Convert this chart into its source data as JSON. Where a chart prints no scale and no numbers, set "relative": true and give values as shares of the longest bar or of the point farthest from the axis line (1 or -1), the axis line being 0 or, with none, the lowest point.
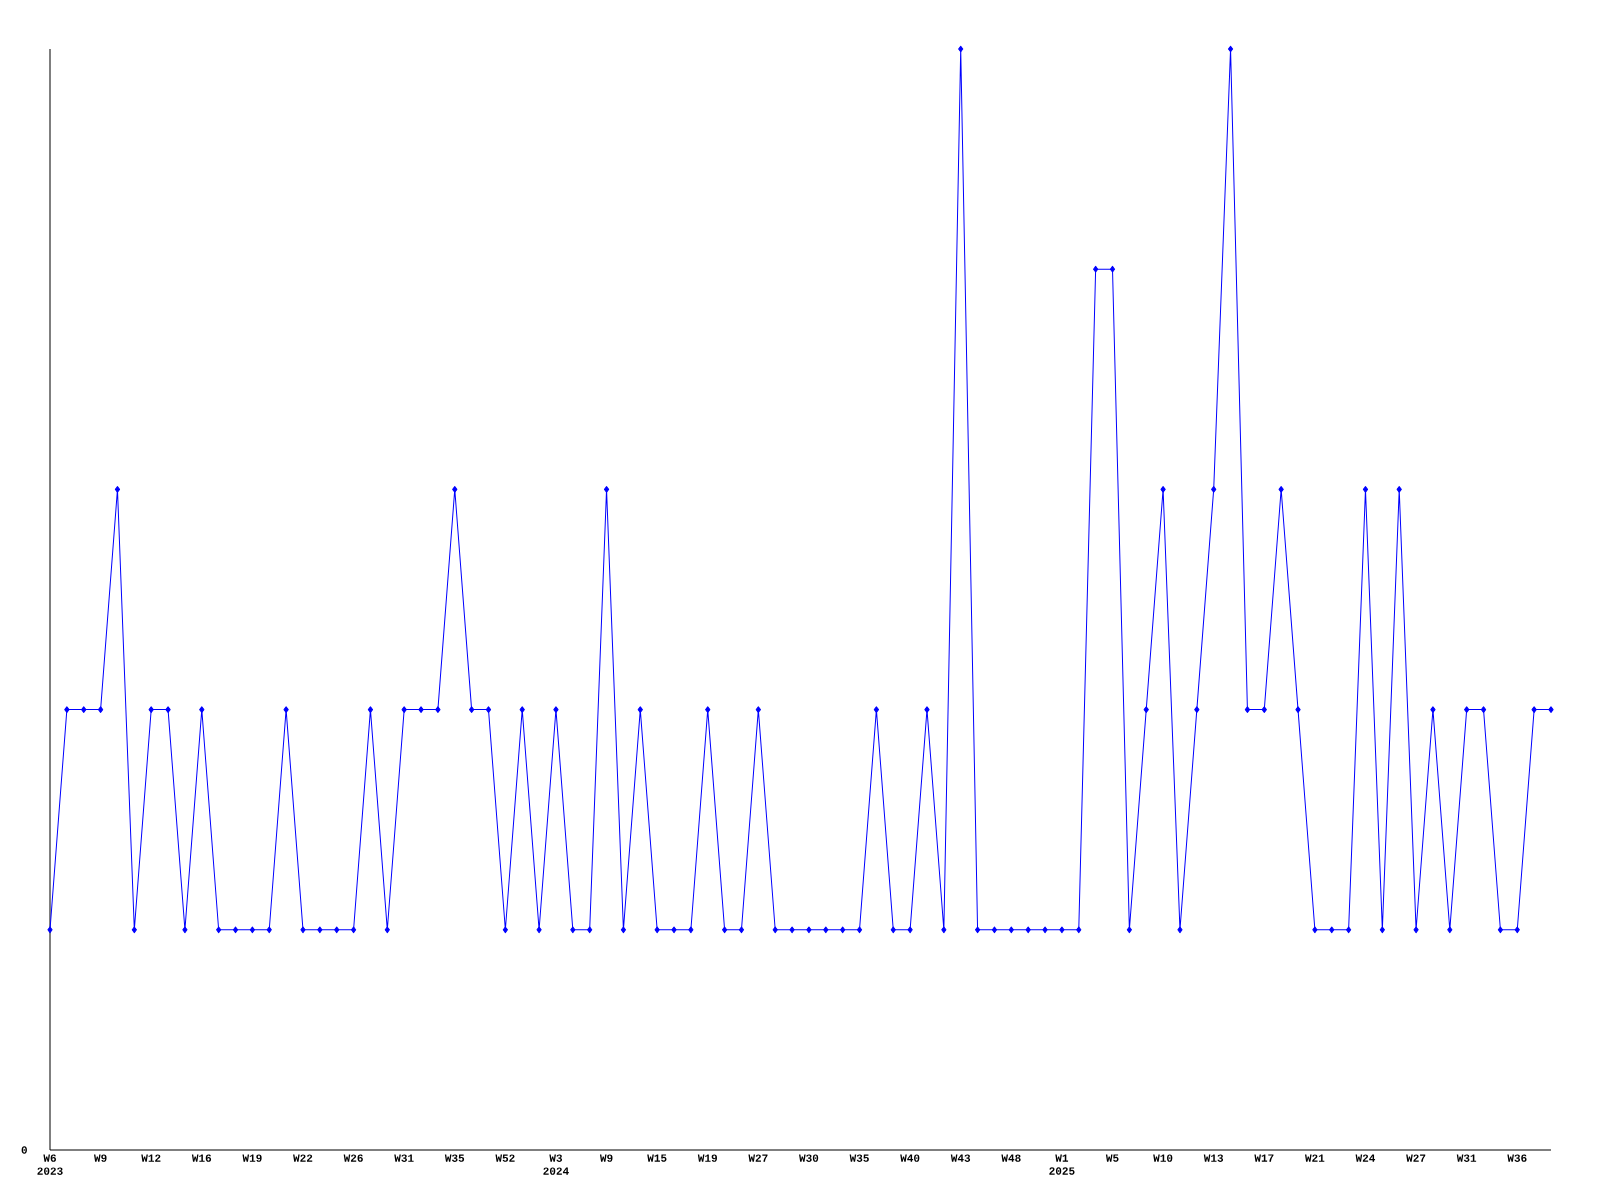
{
  "chart_data": {
    "type": "line",
    "relative": true,
    "color": "#0000ff",
    "marker": "diamond",
    "line_style": "solid",
    "categories": [
      "W6 2023",
      null,
      null,
      "W9",
      null,
      null,
      "W12",
      null,
      null,
      "W16",
      null,
      null,
      "W19",
      null,
      null,
      "W22",
      null,
      null,
      "W26",
      null,
      null,
      "W31",
      null,
      null,
      "W35",
      null,
      null,
      "W52",
      null,
      null,
      "W3 2024",
      null,
      null,
      "W9",
      null,
      null,
      "W15",
      null,
      null,
      "W19",
      null,
      null,
      "W27",
      null,
      null,
      "W30",
      null,
      null,
      "W35",
      null,
      null,
      "W40",
      null,
      null,
      "W43",
      null,
      null,
      "W48",
      null,
      null,
      "W1 2025",
      null,
      null,
      "W5",
      null,
      null,
      "W10",
      null,
      null,
      "W13",
      null,
      null,
      "W17",
      null,
      null,
      "W21",
      null,
      null,
      "W24",
      null,
      null,
      "W27",
      null,
      null,
      "W31",
      null,
      null,
      "W36",
      null,
      null
    ],
    "values": [
      0.2,
      0.4,
      0.4,
      0.4,
      0.6,
      0.2,
      0.4,
      0.4,
      0.2,
      0.4,
      0.2,
      0.2,
      0.2,
      0.2,
      0.4,
      0.2,
      0.2,
      0.2,
      0.2,
      0.4,
      0.2,
      0.4,
      0.4,
      0.4,
      0.6,
      0.4,
      0.4,
      0.2,
      0.4,
      0.2,
      0.4,
      0.2,
      0.2,
      0.6,
      0.2,
      0.4,
      0.2,
      0.2,
      0.2,
      0.4,
      0.2,
      0.2,
      0.4,
      0.2,
      0.2,
      0.2,
      0.2,
      0.2,
      0.2,
      0.4,
      0.2,
      0.2,
      0.4,
      0.2,
      1,
      0.2,
      0.2,
      0.2,
      0.2,
      0.2,
      0.2,
      0.2,
      0.8,
      0.8,
      0.2,
      0.4,
      0.6,
      0.2,
      0.4,
      0.6,
      1,
      0.4,
      0.4,
      0.6,
      0.4,
      0.2,
      0.2,
      0.2,
      0.6,
      0.2,
      0.6,
      0.2,
      0.4,
      0.2,
      0.4,
      0.4,
      0.2,
      0.2,
      0.4,
      0.4
    ],
    "annotations": [
      "0"
    ]
  }
}
